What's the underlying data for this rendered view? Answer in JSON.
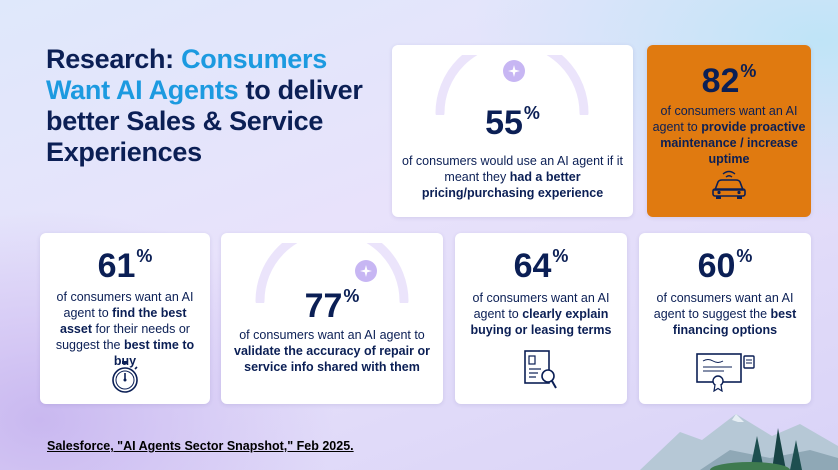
{
  "title": {
    "part1": "Research: ",
    "part2": "Consumers Want AI Agents",
    "part3": " to deliver better Sales & Service Experiences"
  },
  "cards": [
    {
      "id": "pricing",
      "value": "55",
      "unit": "%",
      "pre": "of consumers would use an AI agent if it meant they ",
      "bold": "had a better pricing/purchasing experience",
      "post": ""
    },
    {
      "id": "maintenance",
      "value": "82",
      "unit": "%",
      "pre": "of consumers want an AI agent to ",
      "bold": "provide proactive maintenance / increase uptime",
      "post": ""
    },
    {
      "id": "asset",
      "value": "61",
      "unit": "%",
      "pre": "of consumers want an AI agent to ",
      "bold": "find the best asset",
      "mid": " for their needs or suggest the ",
      "bold2": "best time to buy"
    },
    {
      "id": "validate",
      "value": "77",
      "unit": "%",
      "pre": "of consumers want an AI agent to ",
      "bold": "validate the accuracy of repair or service info shared with them",
      "post": ""
    },
    {
      "id": "terms",
      "value": "64",
      "unit": "%",
      "pre": "of consumers want an AI agent to ",
      "bold": "clearly explain buying or leasing terms",
      "post": ""
    },
    {
      "id": "financing",
      "value": "60",
      "unit": "%",
      "pre": "of consumers want an AI agent to suggest the ",
      "bold": "best financing options",
      "post": ""
    }
  ],
  "icons": [
    "sparkle-icon",
    "car-icon",
    "stopwatch-icon",
    "sparkle-icon",
    "document-search-icon",
    "certificate-icon"
  ],
  "source": "Salesforce, \"AI Agents Sector Snapshot,\" Feb 2025.",
  "colors": {
    "navy": "#0b1f55",
    "accent": "#1c9ae0",
    "orange": "#e07a10"
  }
}
